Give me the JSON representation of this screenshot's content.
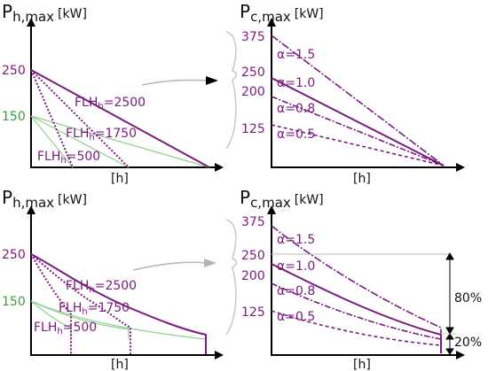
{
  "colors": {
    "purple": "#7a1a7e",
    "green": "#3a9a3a",
    "light_green": "#8fcf8f",
    "gray": "#b4b4b4",
    "axis": "#000000"
  },
  "panel_tl": {
    "title_main": "P",
    "title_sub": "h,max",
    "title_unit": "[kW]",
    "xlabel": "[h]",
    "tick_250": "250",
    "tick_150": "150",
    "curve_2500_main": "FLH",
    "curve_2500_sub": "h",
    "curve_2500_val": "=2500",
    "curve_1750_main": "FLH",
    "curve_1750_sub": "h",
    "curve_1750_val": "=1750",
    "curve_500_main": "FLH",
    "curve_500_sub": "h",
    "curve_500_val": "=500"
  },
  "panel_tr": {
    "title_main": "P",
    "title_sub": "c,max",
    "title_unit": "[kW]",
    "xlabel": "[h]",
    "tick_375": "375",
    "tick_250": "250",
    "tick_200": "200",
    "tick_125": "125",
    "alpha_15": "α=1.5",
    "alpha_10": "α=1.0",
    "alpha_08": "α=0.8",
    "alpha_05": "α=0.5"
  },
  "panel_bl": {
    "title_main": "P",
    "title_sub": "h,max",
    "title_unit": "[kW]",
    "xlabel": "[h]",
    "tick_250": "250",
    "tick_150": "150",
    "curve_2500_main": "FLH",
    "curve_2500_sub": "h",
    "curve_2500_val": "=2500",
    "curve_1750_main": "FLH",
    "curve_1750_sub": "h",
    "curve_1750_val": "=1750",
    "curve_500_main": "FLH",
    "curve_500_sub": "h",
    "curve_500_val": "=500"
  },
  "panel_br": {
    "title_main": "P",
    "title_sub": "c,max",
    "title_unit": "[kW]",
    "xlabel": "[h]",
    "tick_375": "375",
    "tick_250": "250",
    "tick_200": "200",
    "tick_125": "125",
    "alpha_15": "α=1.5",
    "alpha_10": "α=1.0",
    "alpha_08": "α=0.8",
    "alpha_05": "α=0.5",
    "pct_80": "80%",
    "pct_20": "20%"
  }
}
